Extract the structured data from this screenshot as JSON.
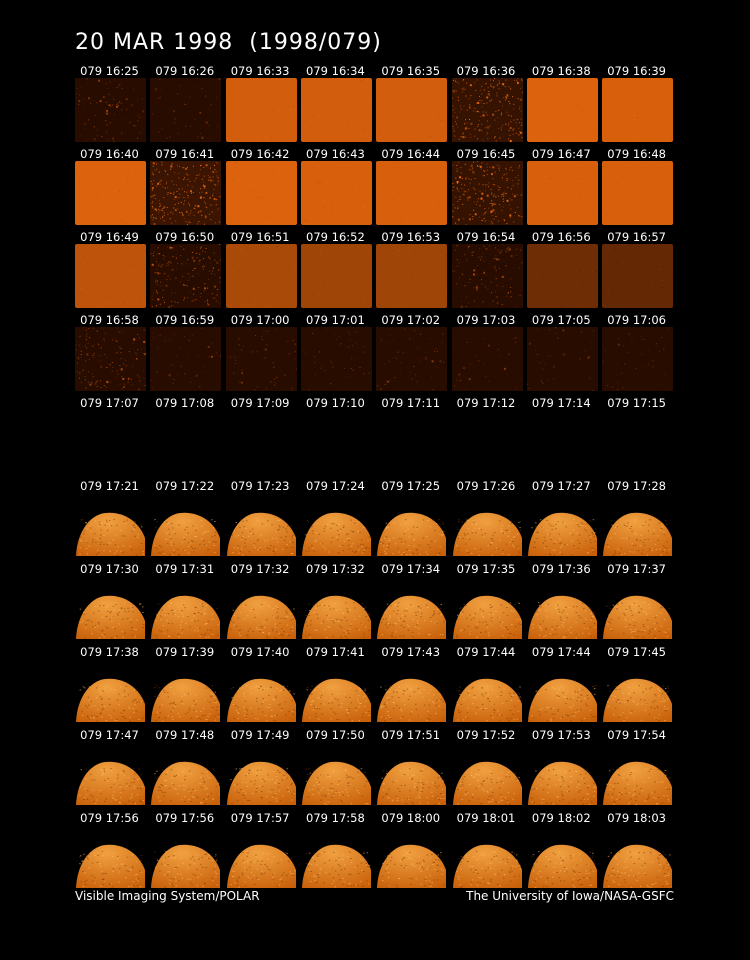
{
  "title": "20 MAR 1998  (1998/079)",
  "footer": {
    "left": "Visible Imaging System/POLAR",
    "right": "The University of Iowa/NASA-GSFC"
  },
  "rows": [
    {
      "frames": [
        {
          "label": "079 16:25",
          "type": "noise",
          "level": 0.18
        },
        {
          "label": "079 16:26",
          "type": "noise",
          "level": 0.05
        },
        {
          "label": "079 16:33",
          "type": "flat",
          "level": 0.85
        },
        {
          "label": "079 16:34",
          "type": "flat",
          "level": 0.85
        },
        {
          "label": "079 16:35",
          "type": "flat",
          "level": 0.85
        },
        {
          "label": "079 16:36",
          "type": "noise",
          "level": 0.6
        },
        {
          "label": "079 16:38",
          "type": "flat",
          "level": 0.9
        },
        {
          "label": "079 16:39",
          "type": "flat",
          "level": 0.88
        }
      ]
    },
    {
      "frames": [
        {
          "label": "079 16:40",
          "type": "flat",
          "level": 0.9
        },
        {
          "label": "079 16:41",
          "type": "noise",
          "level": 0.65
        },
        {
          "label": "079 16:42",
          "type": "flat",
          "level": 0.9
        },
        {
          "label": "079 16:43",
          "type": "flat",
          "level": 0.88
        },
        {
          "label": "079 16:44",
          "type": "flat",
          "level": 0.88
        },
        {
          "label": "079 16:45",
          "type": "noise",
          "level": 0.6
        },
        {
          "label": "079 16:47",
          "type": "flat",
          "level": 0.88
        },
        {
          "label": "079 16:48",
          "type": "flat",
          "level": 0.88
        }
      ]
    },
    {
      "frames": [
        {
          "label": "079 16:49",
          "type": "flat",
          "level": 0.75
        },
        {
          "label": "079 16:50",
          "type": "noise",
          "level": 0.4
        },
        {
          "label": "079 16:51",
          "type": "flat",
          "level": 0.65
        },
        {
          "label": "079 16:52",
          "type": "flat",
          "level": 0.6
        },
        {
          "label": "079 16:53",
          "type": "flat",
          "level": 0.6
        },
        {
          "label": "079 16:54",
          "type": "noise",
          "level": 0.25
        },
        {
          "label": "079 16:56",
          "type": "flat",
          "level": 0.35
        },
        {
          "label": "079 16:57",
          "type": "flat",
          "level": 0.3
        }
      ]
    },
    {
      "frames": [
        {
          "label": "079 16:58",
          "type": "noise",
          "level": 0.3
        },
        {
          "label": "079 16:59",
          "type": "noise",
          "level": 0.06
        },
        {
          "label": "079 17:00",
          "type": "noise",
          "level": 0.08
        },
        {
          "label": "079 17:01",
          "type": "noise",
          "level": 0.06
        },
        {
          "label": "079 17:02",
          "type": "noise",
          "level": 0.07
        },
        {
          "label": "079 17:03",
          "type": "noise",
          "level": 0.02
        },
        {
          "label": "079 17:05",
          "type": "noise",
          "level": 0.02
        },
        {
          "label": "079 17:06",
          "type": "noise",
          "level": 0.02
        }
      ]
    },
    {
      "frames": [
        {
          "label": "079 17:07",
          "type": "dark",
          "level": 0.0
        },
        {
          "label": "079 17:08",
          "type": "dark",
          "level": 0.0
        },
        {
          "label": "079 17:09",
          "type": "dark",
          "level": 0.0
        },
        {
          "label": "079 17:10",
          "type": "dark",
          "level": 0.0
        },
        {
          "label": "079 17:11",
          "type": "dark",
          "level": 0.0
        },
        {
          "label": "079 17:12",
          "type": "dark",
          "level": 0.0
        },
        {
          "label": "079 17:14",
          "type": "dark",
          "level": 0.0
        },
        {
          "label": "079 17:15",
          "type": "dark",
          "level": 0.0
        }
      ]
    },
    {
      "frames": [
        {
          "label": "079 17:21",
          "type": "earth",
          "level": 0.85
        },
        {
          "label": "079 17:22",
          "type": "earth",
          "level": 0.85
        },
        {
          "label": "079 17:23",
          "type": "earth",
          "level": 0.85
        },
        {
          "label": "079 17:24",
          "type": "earth",
          "level": 0.85
        },
        {
          "label": "079 17:25",
          "type": "earth",
          "level": 0.85
        },
        {
          "label": "079 17:26",
          "type": "earth",
          "level": 0.85
        },
        {
          "label": "079 17:27",
          "type": "earth",
          "level": 0.85
        },
        {
          "label": "079 17:28",
          "type": "earth",
          "level": 0.85
        }
      ]
    },
    {
      "frames": [
        {
          "label": "079 17:30",
          "type": "earth",
          "level": 0.85
        },
        {
          "label": "079 17:31",
          "type": "earth",
          "level": 0.85
        },
        {
          "label": "079 17:32",
          "type": "earth",
          "level": 0.85
        },
        {
          "label": "079 17:32",
          "type": "earth",
          "level": 0.85
        },
        {
          "label": "079 17:34",
          "type": "earth",
          "level": 0.85
        },
        {
          "label": "079 17:35",
          "type": "earth",
          "level": 0.85
        },
        {
          "label": "079 17:36",
          "type": "earth",
          "level": 0.85
        },
        {
          "label": "079 17:37",
          "type": "earth",
          "level": 0.85
        }
      ]
    },
    {
      "frames": [
        {
          "label": "079 17:38",
          "type": "earth",
          "level": 0.85
        },
        {
          "label": "079 17:39",
          "type": "earth",
          "level": 0.85
        },
        {
          "label": "079 17:40",
          "type": "earth",
          "level": 0.85
        },
        {
          "label": "079 17:41",
          "type": "earth",
          "level": 0.85
        },
        {
          "label": "079 17:43",
          "type": "earth",
          "level": 0.85
        },
        {
          "label": "079 17:44",
          "type": "earth",
          "level": 0.85
        },
        {
          "label": "079 17:44",
          "type": "earth",
          "level": 0.85
        },
        {
          "label": "079 17:45",
          "type": "earth",
          "level": 0.85
        }
      ]
    },
    {
      "frames": [
        {
          "label": "079 17:47",
          "type": "earth",
          "level": 0.85
        },
        {
          "label": "079 17:48",
          "type": "earth",
          "level": 0.85
        },
        {
          "label": "079 17:49",
          "type": "earth",
          "level": 0.85
        },
        {
          "label": "079 17:50",
          "type": "earth",
          "level": 0.85
        },
        {
          "label": "079 17:51",
          "type": "earth",
          "level": 0.85
        },
        {
          "label": "079 17:52",
          "type": "earth",
          "level": 0.85
        },
        {
          "label": "079 17:53",
          "type": "earth",
          "level": 0.85
        },
        {
          "label": "079 17:54",
          "type": "earth",
          "level": 0.85
        }
      ]
    },
    {
      "frames": [
        {
          "label": "079 17:56",
          "type": "earth",
          "level": 0.85
        },
        {
          "label": "079 17:56",
          "type": "earth",
          "level": 0.85
        },
        {
          "label": "079 17:57",
          "type": "earth",
          "level": 0.85
        },
        {
          "label": "079 17:58",
          "type": "earth",
          "level": 0.85
        },
        {
          "label": "079 18:00",
          "type": "earth",
          "level": 0.85
        },
        {
          "label": "079 18:01",
          "type": "earth",
          "level": 0.85
        },
        {
          "label": "079 18:02",
          "type": "earth",
          "level": 0.85
        },
        {
          "label": "079 18:03",
          "type": "earth",
          "level": 0.85
        }
      ]
    }
  ],
  "colors": {
    "background": "#000000",
    "text": "#ffffff",
    "frame_base": "#d9650e",
    "frame_hot": "#ffb347",
    "earth_base": "#c8600a",
    "earth_light": "#f0a040"
  }
}
